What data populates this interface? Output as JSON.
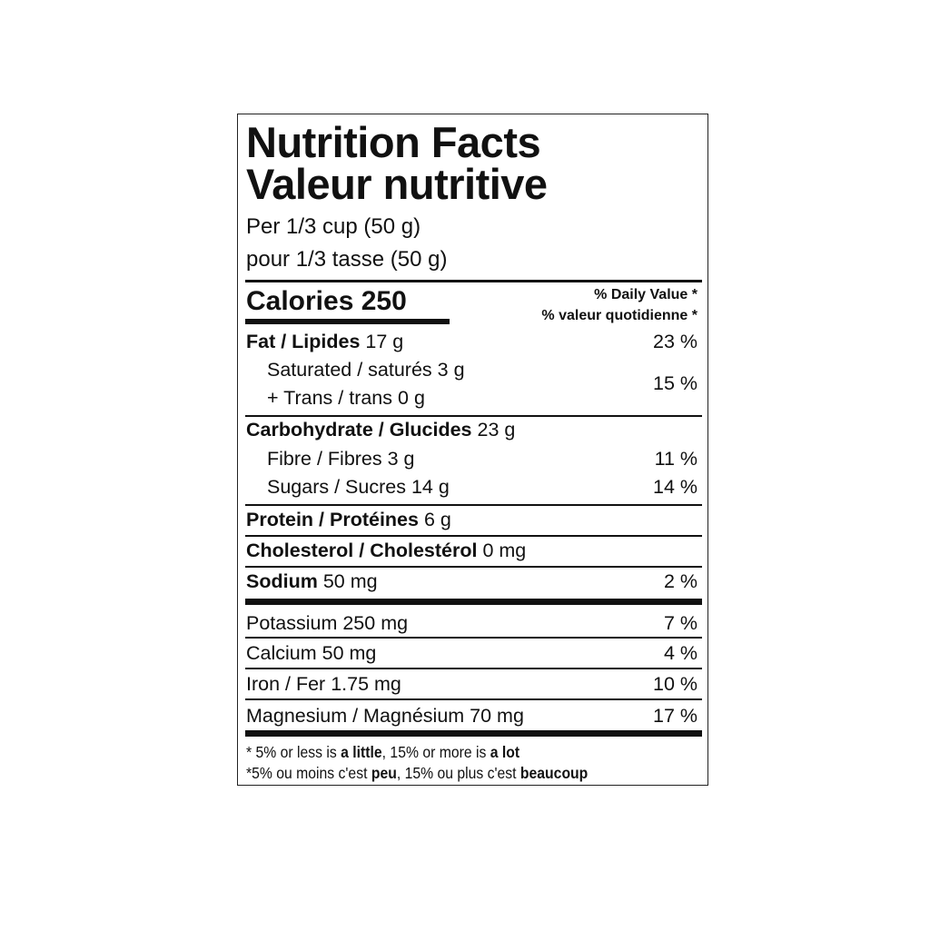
{
  "title_en": "Nutrition Facts",
  "title_fr": "Valeur nutritive",
  "serving_en": "Per 1/3 cup (50 g)",
  "serving_fr": "pour 1/3 tasse (50 g)",
  "calories_label": "Calories",
  "calories_value": "250",
  "dv_header_en": "% Daily Value *",
  "dv_header_fr": "% valeur quotidienne *",
  "nutrients": {
    "fat": {
      "label": "Fat / Lipides",
      "amount": "17 g",
      "dv": "23 %"
    },
    "saturated": {
      "label": "Saturated / saturés",
      "amount": "3 g"
    },
    "trans": {
      "label": "+ Trans / trans",
      "amount": "0 g"
    },
    "sat_trans_dv": "15 %",
    "carbohydrate": {
      "label": "Carbohydrate / Glucides",
      "amount": "23 g"
    },
    "fibre": {
      "label": "Fibre / Fibres",
      "amount": "3 g",
      "dv": "11 %"
    },
    "sugars": {
      "label": "Sugars / Sucres",
      "amount": "14 g",
      "dv": "14 %"
    },
    "protein": {
      "label": "Protein / Protéines",
      "amount": "6 g"
    },
    "cholesterol": {
      "label": "Cholesterol / Cholestérol",
      "amount": "0 mg"
    },
    "sodium": {
      "label": "Sodium",
      "amount": "50 mg",
      "dv": "2 %"
    }
  },
  "minerals": [
    {
      "label": "Potassium 250 mg",
      "dv": "7 %"
    },
    {
      "label": "Calcium 50 mg",
      "dv": "4 %"
    },
    {
      "label": "Iron / Fer 1.75 mg",
      "dv": "10 %"
    },
    {
      "label": "Magnesium / Magnésium 70 mg",
      "dv": "17 %"
    }
  ],
  "footnote_en": {
    "p1": "* 5% or less is ",
    "b1": "a little",
    "p2": ", 15% or more is ",
    "b2": "a lot"
  },
  "footnote_fr": {
    "p1": "*5% ou moins c'est ",
    "b1": "peu",
    "p2": ", 15% ou plus c'est ",
    "b2": "beaucoup"
  }
}
